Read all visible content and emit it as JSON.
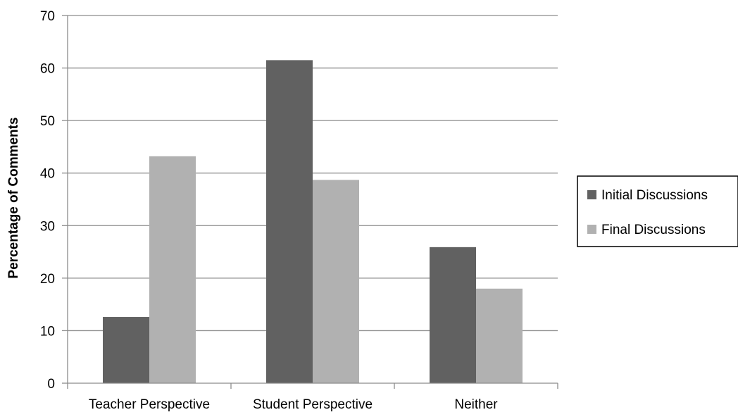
{
  "chart_data": {
    "type": "bar",
    "categories": [
      "Teacher Perspective",
      "Student Perspective",
      "Neither"
    ],
    "series": [
      {
        "name": "Initial Discussions",
        "values": [
          12.6,
          61.5,
          25.9
        ],
        "color": "#616161"
      },
      {
        "name": "Final Discussions",
        "values": [
          43.2,
          38.7,
          18.0
        ],
        "color": "#b1b1b1"
      }
    ],
    "title": "",
    "xlabel": "",
    "ylabel": "Percentage of Comments",
    "ylim": [
      0,
      70
    ],
    "yticks": [
      0,
      10,
      20,
      30,
      40,
      50,
      60,
      70
    ],
    "grid": true,
    "legend_position": "right"
  }
}
